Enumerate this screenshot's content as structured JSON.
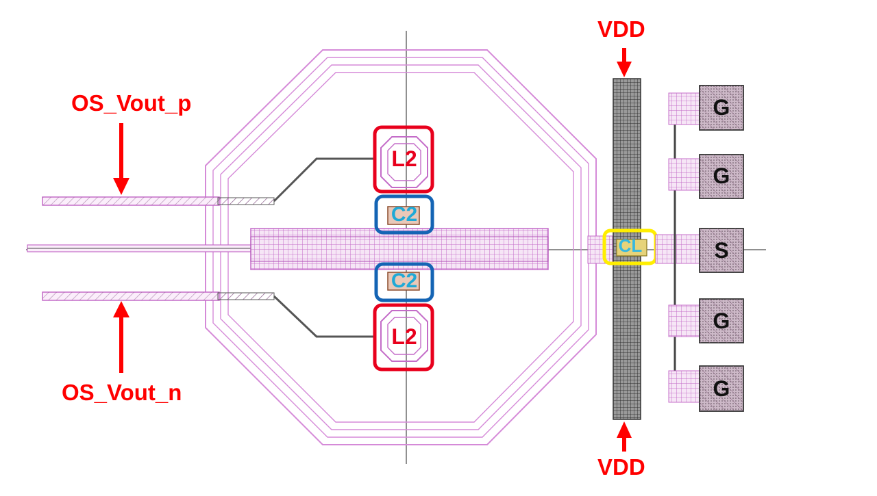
{
  "labels": {
    "os_vout_p": "OS_Vout_p",
    "os_vout_n": "OS_Vout_n",
    "vdd_top": "VDD",
    "vdd_bottom": "VDD"
  },
  "components": {
    "l2_top": "L2",
    "l2_bottom": "L2",
    "c2_top": "C2",
    "c2_bottom": "C2",
    "cl": "CL"
  },
  "pads": [
    "G",
    "G",
    "S",
    "G",
    "G"
  ],
  "colors": {
    "annotation": "#ff0000",
    "metal": "#d58ad8",
    "l2_box": "#e8001c",
    "c2_box": "#1464b4",
    "cl_box": "#ffee00",
    "pad_fill": "#c9b6c4",
    "vdd_rail": "#555555"
  }
}
